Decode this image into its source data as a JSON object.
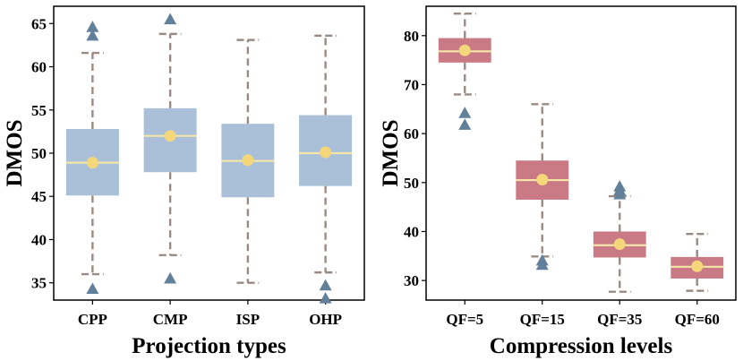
{
  "chart_data": [
    {
      "type": "box",
      "xlabel": "Projection types",
      "ylabel": "DMOS",
      "ylim": [
        33,
        67
      ],
      "yticks": [
        35,
        40,
        45,
        50,
        55,
        60,
        65
      ],
      "box_color": "#a9c0d8",
      "median_color": "#f5e6a8",
      "whisker_color": "#9a8a84",
      "mean_color": "#f4d77a",
      "outlier_color": "#63809a",
      "categories": [
        "CPP",
        "CMP",
        "ISP",
        "OHP"
      ],
      "boxes": [
        {
          "label": "CPP",
          "whislo": 36.0,
          "q1": 45.1,
          "med": 48.9,
          "q3": 52.8,
          "whishi": 61.6,
          "mean": 48.9,
          "fliers": [
            34.3,
            63.6,
            64.6
          ]
        },
        {
          "label": "CMP",
          "whislo": 38.2,
          "q1": 47.8,
          "med": 52.0,
          "q3": 55.2,
          "whishi": 63.8,
          "mean": 52.0,
          "fliers": [
            35.5,
            65.5
          ]
        },
        {
          "label": "ISP",
          "whislo": 35.0,
          "q1": 44.9,
          "med": 49.1,
          "q3": 53.4,
          "whishi": 63.1,
          "mean": 49.2,
          "fliers": []
        },
        {
          "label": "OHP",
          "whislo": 36.2,
          "q1": 46.2,
          "med": 50.0,
          "q3": 54.4,
          "whishi": 63.6,
          "mean": 50.1,
          "fliers": [
            33.2,
            34.7
          ]
        }
      ]
    },
    {
      "type": "box",
      "xlabel": "Compression levels",
      "ylabel": "DMOS",
      "ylim": [
        26,
        86
      ],
      "yticks": [
        30,
        40,
        50,
        60,
        70,
        80
      ],
      "box_color": "#c97a85",
      "median_color": "#f5e6a8",
      "whisker_color": "#9a8a84",
      "mean_color": "#f4d77a",
      "outlier_color": "#63809a",
      "categories": [
        "QF=5",
        "QF=15",
        "QF=35",
        "QF=60"
      ],
      "boxes": [
        {
          "label": "QF=5",
          "whislo": 68.0,
          "q1": 74.5,
          "med": 76.8,
          "q3": 79.5,
          "whishi": 84.5,
          "mean": 77.0,
          "fliers": [
            61.8,
            64.2
          ]
        },
        {
          "label": "QF=15",
          "whislo": 34.9,
          "q1": 46.5,
          "med": 50.5,
          "q3": 54.5,
          "whishi": 66.0,
          "mean": 50.6,
          "fliers": [
            33.2,
            34.1
          ]
        },
        {
          "label": "QF=35",
          "whislo": 27.7,
          "q1": 34.7,
          "med": 37.2,
          "q3": 40.0,
          "whishi": 47.2,
          "mean": 37.4,
          "fliers": [
            47.6,
            48.4,
            49.2
          ]
        },
        {
          "label": "QF=60",
          "whislo": 27.9,
          "q1": 30.4,
          "med": 32.8,
          "q3": 34.8,
          "whishi": 39.5,
          "mean": 32.9,
          "fliers": []
        }
      ]
    }
  ]
}
